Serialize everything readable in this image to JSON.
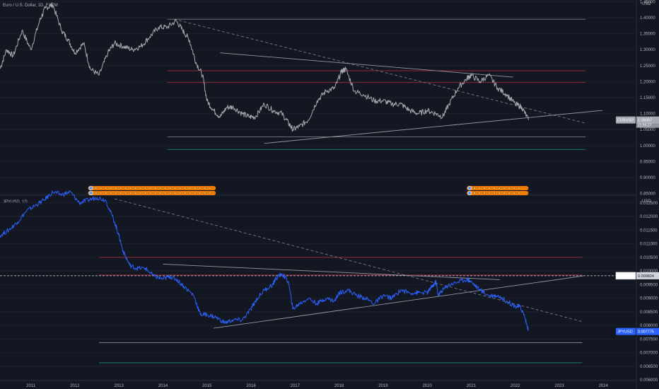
{
  "chart_data": [
    {
      "type": "line",
      "title": "Euro / U.S. Dollar, 1D, FXCM",
      "currency": "USD",
      "ylim": [
        0.845,
        1.455
      ],
      "y_ticks": [
        1.45,
        1.4,
        1.35,
        1.3,
        1.25,
        1.2,
        1.15,
        1.1,
        1.05,
        1.0,
        0.95,
        0.9,
        0.85
      ],
      "y_tick_labels": [
        "1.45000",
        "1.40000",
        "1.35000",
        "1.30000",
        "1.25000",
        "1.20000",
        "1.15000",
        "1.10000",
        "1.05000",
        "1.00000",
        "0.95000",
        "0.90000",
        "0.85000"
      ],
      "last_value": 1.08,
      "last_value_label": "EURUSD",
      "last_value_text": "1.08097",
      "last_value_sub": "21:55:27",
      "series": [
        {
          "color": "#a8aab2",
          "x": [
            2010.3,
            2010.45,
            2010.6,
            2010.8,
            2011.0,
            2011.2,
            2011.33,
            2011.5,
            2011.7,
            2011.85,
            2012.0,
            2012.2,
            2012.35,
            2012.55,
            2012.75,
            2012.9,
            2013.1,
            2013.3,
            2013.5,
            2013.7,
            2013.9,
            2014.1,
            2014.3,
            2014.45,
            2014.6,
            2014.75,
            2014.9,
            2015.0,
            2015.15,
            2015.3,
            2015.45,
            2015.6,
            2015.8,
            2015.95,
            2016.1,
            2016.3,
            2016.5,
            2016.7,
            2016.85,
            2016.95,
            2017.1,
            2017.3,
            2017.5,
            2017.7,
            2017.9,
            2018.05,
            2018.15,
            2018.35,
            2018.55,
            2018.8,
            2019.0,
            2019.2,
            2019.4,
            2019.6,
            2019.8,
            2020.0,
            2020.2,
            2020.35,
            2020.5,
            2020.7,
            2020.9,
            2021.0,
            2021.2,
            2021.4,
            2021.6,
            2021.8,
            2022.0,
            2022.15,
            2022.3
          ],
          "y": [
            1.24,
            1.3,
            1.28,
            1.36,
            1.3,
            1.39,
            1.43,
            1.44,
            1.36,
            1.33,
            1.29,
            1.32,
            1.24,
            1.22,
            1.29,
            1.32,
            1.31,
            1.3,
            1.31,
            1.34,
            1.37,
            1.37,
            1.39,
            1.36,
            1.33,
            1.26,
            1.22,
            1.14,
            1.11,
            1.09,
            1.12,
            1.12,
            1.1,
            1.09,
            1.09,
            1.13,
            1.11,
            1.1,
            1.07,
            1.05,
            1.06,
            1.08,
            1.14,
            1.17,
            1.18,
            1.23,
            1.24,
            1.17,
            1.16,
            1.14,
            1.14,
            1.13,
            1.13,
            1.11,
            1.1,
            1.11,
            1.1,
            1.09,
            1.13,
            1.18,
            1.21,
            1.22,
            1.2,
            1.22,
            1.18,
            1.16,
            1.13,
            1.12,
            1.08
          ]
        }
      ],
      "trendlines": [
        {
          "x": [
            2014.25,
            2023.6
          ],
          "y": [
            1.395,
            1.07
          ],
          "style": "dashed",
          "color": "#787b86"
        },
        {
          "x": [
            2015.3,
            2021.95
          ],
          "y": [
            1.29,
            1.214
          ],
          "style": "solid",
          "color": "#9598a1"
        },
        {
          "x": [
            2016.3,
            2023.98
          ],
          "y": [
            1.007,
            1.11
          ],
          "style": "solid",
          "color": "#9598a1"
        }
      ],
      "levels": [
        {
          "y": 1.395,
          "x": [
            2014.1,
            2023.6
          ],
          "color": "#b2b5be"
        },
        {
          "y": 1.234,
          "x": [
            2014.1,
            2023.6
          ],
          "color": "#f23645"
        },
        {
          "y": 1.197,
          "x": [
            2014.1,
            2023.6
          ],
          "color": "#f23645"
        },
        {
          "y": 1.027,
          "x": [
            2014.1,
            2023.6
          ],
          "color": "#b2b5be"
        },
        {
          "y": 0.988,
          "x": [
            2014.1,
            2023.6
          ],
          "color": "#22ab94"
        }
      ]
    },
    {
      "type": "line",
      "title": "JPYUSD, 1D",
      "currency": "USD",
      "ylim": [
        0.00598,
        0.01278
      ],
      "y_ticks": [
        0.0125,
        0.012,
        0.0115,
        0.011,
        0.0105,
        0.01,
        0.0095,
        0.009,
        0.0085,
        0.008,
        0.0075,
        0.007,
        0.0065,
        0.006
      ],
      "y_tick_labels": [
        "0.012500",
        "0.012000",
        "0.011500",
        "0.011000",
        "0.010500",
        "0.010000",
        "0.009500",
        "0.009000",
        "0.008500",
        "0.008000",
        "0.007500",
        "0.007000",
        "0.006500",
        "0.006000"
      ],
      "last_value": 0.00778,
      "last_value_label": "JPYUSD",
      "last_value_text": "0.007775",
      "level_label_text": "0.009824",
      "level_label_y": 0.009824,
      "series": [
        {
          "color": "#2962ff",
          "x": [
            2010.3,
            2010.5,
            2010.7,
            2010.9,
            2011.1,
            2011.3,
            2011.5,
            2011.7,
            2011.9,
            2012.1,
            2012.3,
            2012.5,
            2012.7,
            2012.9,
            2013.0,
            2013.1,
            2013.25,
            2013.4,
            2013.6,
            2013.8,
            2014.0,
            2014.15,
            2014.3,
            2014.5,
            2014.7,
            2014.85,
            2015.0,
            2015.2,
            2015.4,
            2015.6,
            2015.8,
            2016.0,
            2016.1,
            2016.3,
            2016.5,
            2016.55,
            2016.7,
            2016.85,
            2016.95,
            2017.1,
            2017.3,
            2017.5,
            2017.7,
            2017.9,
            2018.0,
            2018.2,
            2018.4,
            2018.6,
            2018.8,
            2019.0,
            2019.2,
            2019.4,
            2019.6,
            2019.8,
            2020.0,
            2020.1,
            2020.2,
            2020.25,
            2020.35,
            2020.5,
            2020.7,
            2020.9,
            2021.0,
            2021.2,
            2021.4,
            2021.6,
            2021.8,
            2022.0,
            2022.1,
            2022.2,
            2022.3
          ],
          "y": [
            0.0113,
            0.0115,
            0.0118,
            0.0122,
            0.0124,
            0.0126,
            0.0129,
            0.0128,
            0.0129,
            0.0125,
            0.0126,
            0.0127,
            0.0126,
            0.0118,
            0.0113,
            0.0107,
            0.0102,
            0.0101,
            0.0101,
            0.0098,
            0.0097,
            0.0098,
            0.0097,
            0.0094,
            0.0091,
            0.0084,
            0.0084,
            0.0083,
            0.0081,
            0.0082,
            0.0082,
            0.0086,
            0.0089,
            0.0093,
            0.0095,
            0.0097,
            0.0099,
            0.0096,
            0.0086,
            0.0088,
            0.009,
            0.0088,
            0.009,
            0.0089,
            0.0092,
            0.0093,
            0.0091,
            0.009,
            0.0088,
            0.0091,
            0.009,
            0.0093,
            0.0092,
            0.0092,
            0.0092,
            0.0094,
            0.0096,
            0.0091,
            0.0093,
            0.0095,
            0.0096,
            0.0097,
            0.0096,
            0.0093,
            0.0091,
            0.0091,
            0.0089,
            0.0087,
            0.0087,
            0.0084,
            0.0078
          ]
        }
      ],
      "trendlines": [
        {
          "x": [
            2012.9,
            2023.5
          ],
          "y": [
            0.01265,
            0.00815
          ],
          "style": "dashed",
          "color": "#787b86"
        },
        {
          "x": [
            2014.0,
            2021.65
          ],
          "y": [
            0.01025,
            0.00968
          ],
          "style": "solid",
          "color": "#9598a1"
        },
        {
          "x": [
            2015.15,
            2023.55
          ],
          "y": [
            0.0079,
            0.00982
          ],
          "style": "solid",
          "color": "#9598a1"
        }
      ],
      "levels": [
        {
          "y": 0.0105,
          "x": [
            2012.55,
            2023.52
          ],
          "color": "#f23645"
        },
        {
          "y": 0.00985,
          "x": [
            2012.55,
            2023.52
          ],
          "color": "#f23645"
        },
        {
          "y": 0.00737,
          "x": [
            2012.55,
            2023.52
          ],
          "color": "#b2b5be"
        },
        {
          "y": 0.00663,
          "x": [
            2012.55,
            2023.52
          ],
          "color": "#22ab94"
        }
      ],
      "dashed_level": {
        "y": 0.009824,
        "color": "#d1d4dc"
      }
    }
  ],
  "x_axis": {
    "xlim": [
      2010.3,
      2024.75
    ],
    "ticks": [
      2011,
      2012,
      2013,
      2014,
      2015,
      2016,
      2017,
      2018,
      2019,
      2020,
      2021,
      2022,
      2023,
      2024
    ],
    "tick_labels": [
      "2011",
      "2012",
      "2013",
      "2014",
      "2015",
      "2016",
      "2017",
      "2018",
      "2019",
      "2020",
      "2021",
      "2022",
      "2023",
      "2024"
    ]
  },
  "event_bars": [
    {
      "x": [
        2012.3,
        2015.2
      ],
      "rows": 2,
      "color": "#f57c00"
    },
    {
      "x": [
        2020.9,
        2022.3
      ],
      "rows": 2,
      "color": "#f57c00"
    }
  ]
}
